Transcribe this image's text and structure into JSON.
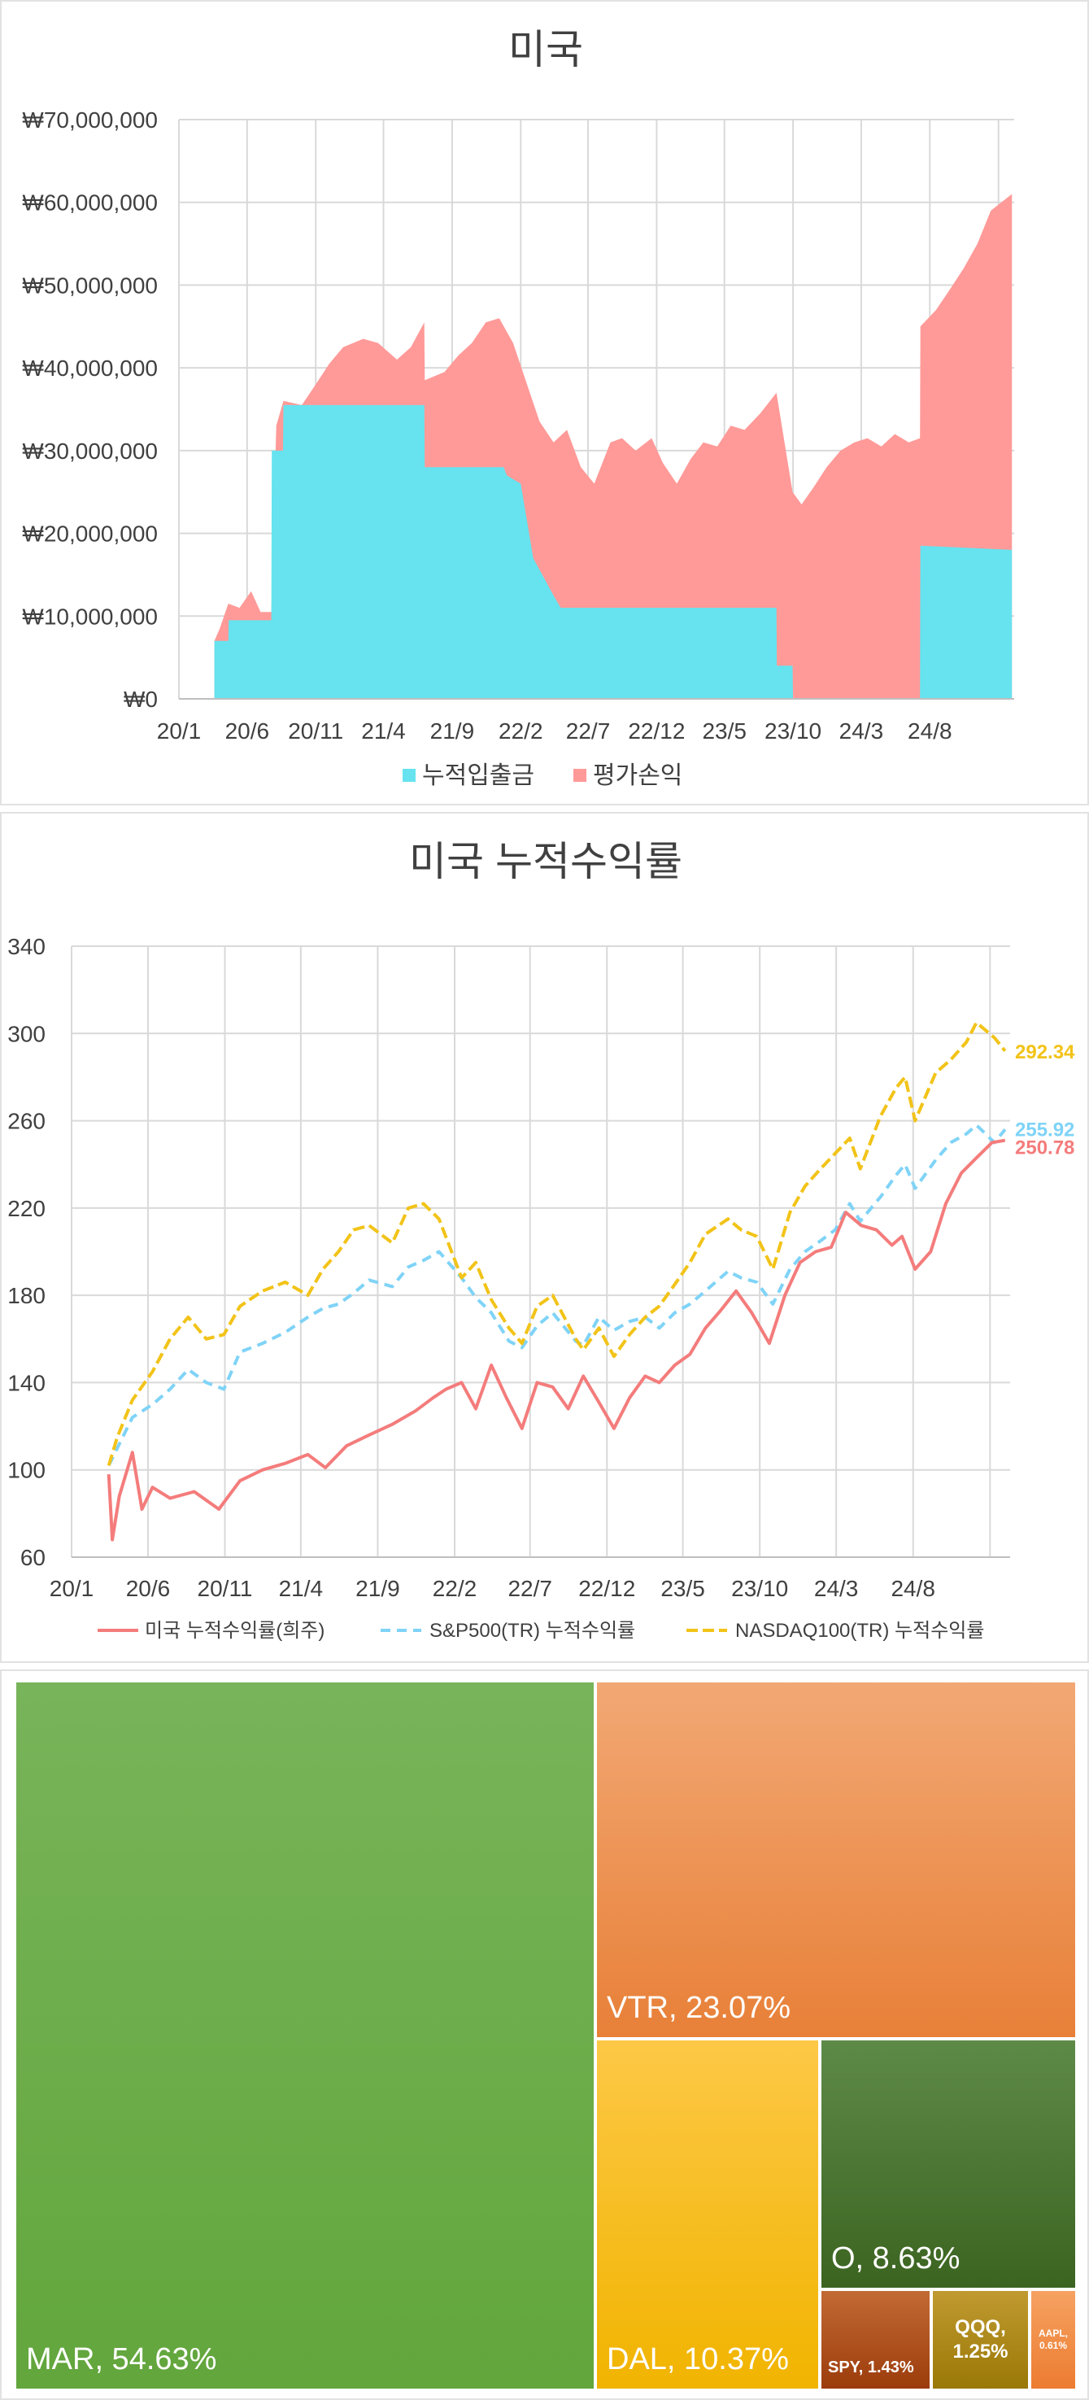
{
  "chart_data": [
    {
      "type": "area",
      "title": "미국",
      "y_tick_labels": [
        "₩70,000,000",
        "₩60,000,000",
        "₩50,000,000",
        "₩40,000,000",
        "₩30,000,000",
        "₩20,000,000",
        "₩10,000,000",
        "₩0"
      ],
      "x_tick_labels": [
        "20/1",
        "20/6",
        "20/11",
        "21/4",
        "21/9",
        "22/2",
        "22/7",
        "22/12",
        "23/5",
        "23/10",
        "24/3",
        "24/8"
      ],
      "ylim": [
        0,
        70000000
      ],
      "grid": true,
      "legend_position": "bottom",
      "series": [
        {
          "name": "누적입출금",
          "color": "#66e3ef",
          "x": [
            "2020-03-20",
            "2020-04-20",
            "2020-04-21",
            "2020-07-25",
            "2020-07-26",
            "2020-08-20",
            "2020-08-21",
            "2021-07-01",
            "2021-07-02",
            "2021-12-25",
            "2022-01-01",
            "2022-02-01",
            "2022-03-01",
            "2022-04-15",
            "2022-05-01",
            "2023-08-25",
            "2023-08-26",
            "2023-09-30",
            "2023-10-01",
            "2024-07-10",
            "2024-07-11",
            "2025-01-31"
          ],
          "values": [
            7000000,
            7000000,
            9500000,
            9500000,
            30000000,
            30000000,
            35500000,
            35500000,
            28000000,
            28000000,
            27000000,
            26000000,
            17000000,
            12500000,
            11000000,
            11000000,
            4000000,
            4000000,
            0,
            0,
            18500000,
            18000000
          ]
        },
        {
          "name": "평가손익",
          "color": "#ff9a98",
          "x": [
            "2020-03-20",
            "2020-04-01",
            "2020-04-20",
            "2020-05-15",
            "2020-06-10",
            "2020-07-01",
            "2020-07-25",
            "2020-08-05",
            "2020-08-21",
            "2020-10-01",
            "2020-11-01",
            "2020-12-01",
            "2021-01-01",
            "2021-02-15",
            "2021-03-20",
            "2021-05-01",
            "2021-06-01",
            "2021-07-01",
            "2021-07-02",
            "2021-08-15",
            "2021-09-15",
            "2021-10-15",
            "2021-11-15",
            "2021-12-15",
            "2022-01-15",
            "2022-02-15",
            "2022-03-15",
            "2022-04-15",
            "2022-05-15",
            "2022-06-15",
            "2022-07-15",
            "2022-08-20",
            "2022-09-15",
            "2022-10-15",
            "2022-11-20",
            "2022-12-15",
            "2023-01-15",
            "2023-02-15",
            "2023-03-15",
            "2023-04-15",
            "2023-05-15",
            "2023-06-15",
            "2023-07-20",
            "2023-08-25",
            "2023-09-30",
            "2023-10-20",
            "2023-11-15",
            "2023-12-15",
            "2024-01-15",
            "2024-02-15",
            "2024-03-15",
            "2024-04-15",
            "2024-05-15",
            "2024-06-15",
            "2024-07-10",
            "2024-07-11",
            "2024-08-15",
            "2024-09-15",
            "2024-10-15",
            "2024-11-15",
            "2024-12-15",
            "2025-01-31"
          ],
          "values": [
            7000000,
            8500000,
            11500000,
            11000000,
            13000000,
            10500000,
            10500000,
            33000000,
            36000000,
            35500000,
            38000000,
            40500000,
            42500000,
            43500000,
            43000000,
            41000000,
            42500000,
            45500000,
            38500000,
            39500000,
            41500000,
            43000000,
            45500000,
            46000000,
            43000000,
            38000000,
            33500000,
            31000000,
            32500000,
            28000000,
            26000000,
            31000000,
            31500000,
            30000000,
            31500000,
            28500000,
            26000000,
            29000000,
            31000000,
            30500000,
            33000000,
            32500000,
            34500000,
            37000000,
            25000000,
            23500000,
            25500000,
            28000000,
            30000000,
            31000000,
            31500000,
            30500000,
            32000000,
            31000000,
            31500000,
            45000000,
            47000000,
            49500000,
            52000000,
            55000000,
            59000000,
            61000000
          ]
        }
      ]
    },
    {
      "type": "line",
      "title": "미국 누적수익률",
      "y_tick_labels": [
        "340",
        "300",
        "260",
        "220",
        "180",
        "140",
        "100",
        "60"
      ],
      "x_tick_labels": [
        "20/1",
        "20/6",
        "20/11",
        "21/4",
        "21/9",
        "22/2",
        "22/7",
        "22/12",
        "23/5",
        "23/10",
        "24/3",
        "24/8"
      ],
      "ylim": [
        60,
        340
      ],
      "grid": true,
      "legend_position": "bottom",
      "series": [
        {
          "name": "미국 누적수익률(희주)",
          "color": "#f47c7c",
          "end_label": "250.78",
          "x": [
            "2020-03-15",
            "2020-03-22",
            "2020-04-05",
            "2020-05-01",
            "2020-05-20",
            "2020-06-10",
            "2020-07-15",
            "2020-09-01",
            "2020-10-20",
            "2020-12-01",
            "2021-01-15",
            "2021-03-01",
            "2021-04-15",
            "2021-05-20",
            "2021-07-01",
            "2021-08-15",
            "2021-10-01",
            "2021-11-15",
            "2021-12-20",
            "2022-01-15",
            "2022-02-15",
            "2022-03-15",
            "2022-04-15",
            "2022-05-15",
            "2022-06-15",
            "2022-07-15",
            "2022-08-15",
            "2022-09-15",
            "2022-10-15",
            "2022-11-15",
            "2022-12-15",
            "2023-01-15",
            "2023-02-15",
            "2023-03-15",
            "2023-04-15",
            "2023-05-15",
            "2023-06-15",
            "2023-07-15",
            "2023-08-15",
            "2023-09-15",
            "2023-10-20",
            "2023-11-20",
            "2023-12-20",
            "2024-01-20",
            "2024-02-20",
            "2024-03-20",
            "2024-04-20",
            "2024-05-20",
            "2024-06-20",
            "2024-07-10",
            "2024-08-05",
            "2024-09-05",
            "2024-10-05",
            "2024-11-05",
            "2024-12-05",
            "2025-01-05",
            "2025-01-31"
          ],
          "values": [
            98,
            68,
            88,
            108,
            82,
            92,
            87,
            90,
            82,
            95,
            100,
            103,
            107,
            101,
            111,
            116,
            121,
            127,
            133,
            137,
            140,
            128,
            148,
            133,
            119,
            140,
            138,
            128,
            143,
            131,
            119,
            133,
            143,
            140,
            148,
            153,
            165,
            173,
            182,
            172,
            158,
            180,
            195,
            200,
            202,
            218,
            212,
            210,
            203,
            207,
            192,
            200,
            222,
            236,
            243,
            250,
            251
          ]
        },
        {
          "name": "S&P500(TR) 누적수익률",
          "color": "#7fd3f7",
          "end_label": "255.92",
          "x": [
            "2020-03-15",
            "2020-04-01",
            "2020-05-01",
            "2020-06-10",
            "2020-07-15",
            "2020-08-20",
            "2020-09-25",
            "2020-10-30",
            "2020-12-01",
            "2021-01-15",
            "2021-03-01",
            "2021-04-15",
            "2021-05-15",
            "2021-06-15",
            "2021-07-15",
            "2021-08-15",
            "2021-09-30",
            "2021-11-01",
            "2021-12-01",
            "2022-01-01",
            "2022-02-15",
            "2022-03-15",
            "2022-04-15",
            "2022-05-20",
            "2022-06-15",
            "2022-07-15",
            "2022-08-15",
            "2022-09-30",
            "2022-10-15",
            "2022-11-15",
            "2022-12-15",
            "2023-01-15",
            "2023-02-15",
            "2023-03-15",
            "2023-04-15",
            "2023-05-15",
            "2023-06-15",
            "2023-07-30",
            "2023-08-25",
            "2023-09-25",
            "2023-10-27",
            "2023-11-30",
            "2023-12-30",
            "2024-01-30",
            "2024-02-28",
            "2024-03-28",
            "2024-04-18",
            "2024-05-28",
            "2024-06-28",
            "2024-07-16",
            "2024-08-05",
            "2024-09-15",
            "2024-10-15",
            "2024-11-15",
            "2024-12-05",
            "2025-01-10",
            "2025-01-31"
          ],
          "values": [
            102,
            110,
            124,
            130,
            137,
            146,
            140,
            137,
            154,
            158,
            163,
            170,
            174,
            176,
            181,
            187,
            184,
            193,
            196,
            200,
            188,
            179,
            172,
            159,
            156,
            166,
            172,
            159,
            157,
            170,
            164,
            168,
            170,
            165,
            172,
            176,
            182,
            191,
            188,
            186,
            176,
            192,
            200,
            205,
            210,
            222,
            214,
            225,
            235,
            240,
            229,
            242,
            250,
            254,
            258,
            250,
            256
          ]
        },
        {
          "name": "NASDAQ100(TR) 누적수익률",
          "color": "#f2c318",
          "end_label": "292.34",
          "x": [
            "2020-03-15",
            "2020-04-01",
            "2020-05-01",
            "2020-06-10",
            "2020-07-15",
            "2020-08-20",
            "2020-09-25",
            "2020-10-30",
            "2020-12-01",
            "2021-01-15",
            "2021-03-01",
            "2021-04-15",
            "2021-05-15",
            "2021-06-15",
            "2021-07-15",
            "2021-08-15",
            "2021-09-30",
            "2021-11-01",
            "2021-12-01",
            "2022-01-01",
            "2022-02-15",
            "2022-03-15",
            "2022-04-15",
            "2022-05-20",
            "2022-06-15",
            "2022-07-15",
            "2022-08-15",
            "2022-09-30",
            "2022-10-15",
            "2022-11-15",
            "2022-12-15",
            "2023-01-15",
            "2023-02-15",
            "2023-03-15",
            "2023-04-15",
            "2023-05-15",
            "2023-06-15",
            "2023-07-30",
            "2023-08-25",
            "2023-09-25",
            "2023-10-27",
            "2023-11-30",
            "2023-12-30",
            "2024-01-30",
            "2024-02-28",
            "2024-03-28",
            "2024-04-18",
            "2024-05-28",
            "2024-06-28",
            "2024-07-16",
            "2024-08-05",
            "2024-09-15",
            "2024-10-15",
            "2024-11-15",
            "2024-12-05",
            "2025-01-10",
            "2025-01-31"
          ],
          "values": [
            102,
            115,
            132,
            145,
            160,
            170,
            160,
            162,
            175,
            182,
            186,
            180,
            192,
            200,
            210,
            212,
            204,
            220,
            222,
            215,
            188,
            195,
            178,
            165,
            158,
            175,
            180,
            160,
            155,
            165,
            152,
            162,
            170,
            175,
            185,
            195,
            208,
            215,
            210,
            207,
            192,
            218,
            230,
            238,
            245,
            252,
            238,
            262,
            275,
            280,
            260,
            282,
            288,
            296,
            305,
            298,
            292
          ]
        }
      ]
    },
    {
      "type": "treemap",
      "items": [
        {
          "label": "MAR, 54.63%",
          "value": 54.63,
          "color": "#6aaa47"
        },
        {
          "label": "VTR, 23.07%",
          "value": 23.07,
          "color": "#ee8d48"
        },
        {
          "label": "DAL, 10.37%",
          "value": 10.37,
          "color": "#fbbc10"
        },
        {
          "label": "O, 8.63%",
          "value": 8.63,
          "color": "#4d7a34"
        },
        {
          "label": "SPY, 1.43%",
          "value": 1.43,
          "color": "#b14f1c"
        },
        {
          "label": "QQQ, 1.25%",
          "value": 1.25,
          "color": "#b28c12"
        },
        {
          "label": "AAPL, 0.61%",
          "value": 0.61,
          "color": "#f08e48"
        }
      ]
    }
  ]
}
